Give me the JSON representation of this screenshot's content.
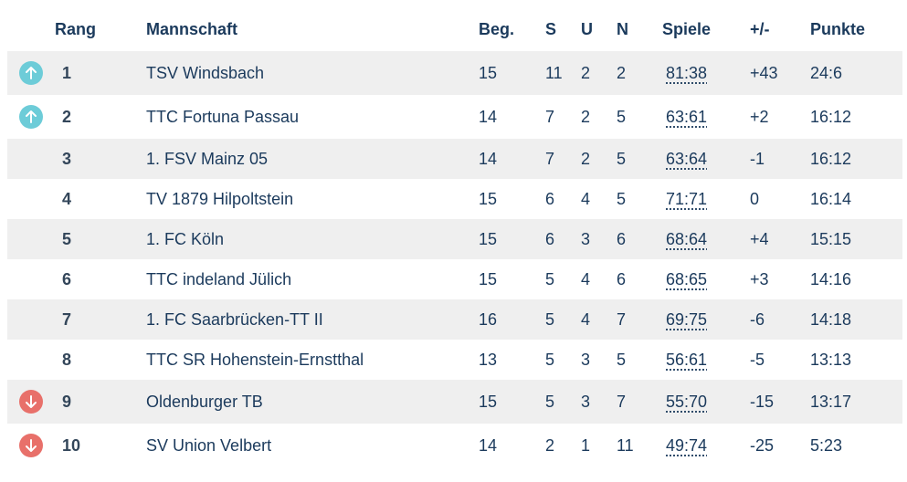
{
  "headers": {
    "rang": "Rang",
    "mannschaft": "Mannschaft",
    "beg": "Beg.",
    "s": "S",
    "u": "U",
    "n": "N",
    "spiele": "Spiele",
    "diff": "+/-",
    "punkte": "Punkte"
  },
  "colors": {
    "up": "#6dccd8",
    "down": "#e8706a",
    "text": "#1b3a5c",
    "row_alt": "#efefef"
  },
  "rows": [
    {
      "rank": "1",
      "team": "TSV Windsbach",
      "beg": "15",
      "s": "11",
      "u": "2",
      "n": "2",
      "spiele": "81:38",
      "diff": "+43",
      "punkte": "24:6",
      "trend": "arrow-up-icon"
    },
    {
      "rank": "2",
      "team": "TTC Fortuna Passau",
      "beg": "14",
      "s": "7",
      "u": "2",
      "n": "5",
      "spiele": "63:61",
      "diff": "+2",
      "punkte": "16:12",
      "trend": "arrow-up-icon"
    },
    {
      "rank": "3",
      "team": "1. FSV Mainz 05",
      "beg": "14",
      "s": "7",
      "u": "2",
      "n": "5",
      "spiele": "63:64",
      "diff": "-1",
      "punkte": "16:12",
      "trend": ""
    },
    {
      "rank": "4",
      "team": "TV 1879 Hilpoltstein",
      "beg": "15",
      "s": "6",
      "u": "4",
      "n": "5",
      "spiele": "71:71",
      "diff": "0",
      "punkte": "16:14",
      "trend": ""
    },
    {
      "rank": "5",
      "team": "1. FC Köln",
      "beg": "15",
      "s": "6",
      "u": "3",
      "n": "6",
      "spiele": "68:64",
      "diff": "+4",
      "punkte": "15:15",
      "trend": ""
    },
    {
      "rank": "6",
      "team": "TTC indeland Jülich",
      "beg": "15",
      "s": "5",
      "u": "4",
      "n": "6",
      "spiele": "68:65",
      "diff": "+3",
      "punkte": "14:16",
      "trend": ""
    },
    {
      "rank": "7",
      "team": "1. FC Saarbrücken-TT II",
      "beg": "16",
      "s": "5",
      "u": "4",
      "n": "7",
      "spiele": "69:75",
      "diff": "-6",
      "punkte": "14:18",
      "trend": ""
    },
    {
      "rank": "8",
      "team": "TTC SR Hohenstein-Ernstthal",
      "beg": "13",
      "s": "5",
      "u": "3",
      "n": "5",
      "spiele": "56:61",
      "diff": "-5",
      "punkte": "13:13",
      "trend": ""
    },
    {
      "rank": "9",
      "team": "Oldenburger TB",
      "beg": "15",
      "s": "5",
      "u": "3",
      "n": "7",
      "spiele": "55:70",
      "diff": "-15",
      "punkte": "13:17",
      "trend": "arrow-down-icon"
    },
    {
      "rank": "10",
      "team": "SV Union Velbert",
      "beg": "14",
      "s": "2",
      "u": "1",
      "n": "11",
      "spiele": "49:74",
      "diff": "-25",
      "punkte": "5:23",
      "trend": "arrow-down-icon"
    }
  ]
}
